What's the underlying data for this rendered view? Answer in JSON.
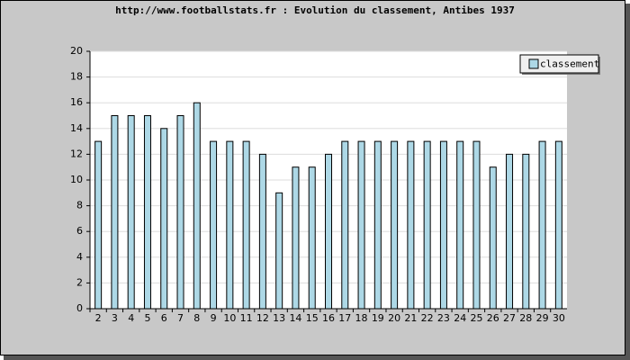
{
  "chart_data": {
    "type": "bar",
    "title": "http://www.footballstats.fr : Evolution du classement, Antibes 1937",
    "categories": [
      "2",
      "3",
      "4",
      "5",
      "6",
      "7",
      "8",
      "9",
      "10",
      "11",
      "12",
      "13",
      "14",
      "15",
      "16",
      "17",
      "18",
      "19",
      "20",
      "21",
      "22",
      "23",
      "24",
      "25",
      "26",
      "27",
      "28",
      "29",
      "30"
    ],
    "series": [
      {
        "name": "classement",
        "color": "#add8e6",
        "values": [
          13,
          15,
          15,
          15,
          14,
          15,
          16,
          13,
          13,
          13,
          12,
          9,
          11,
          11,
          12,
          13,
          13,
          13,
          13,
          13,
          13,
          13,
          13,
          13,
          11,
          12,
          12,
          13,
          13
        ]
      }
    ],
    "ylim": [
      0,
      20
    ],
    "yticks": [
      0,
      2,
      4,
      6,
      8,
      10,
      12,
      14,
      16,
      18,
      20
    ],
    "grid": true,
    "legend": "top-right"
  }
}
